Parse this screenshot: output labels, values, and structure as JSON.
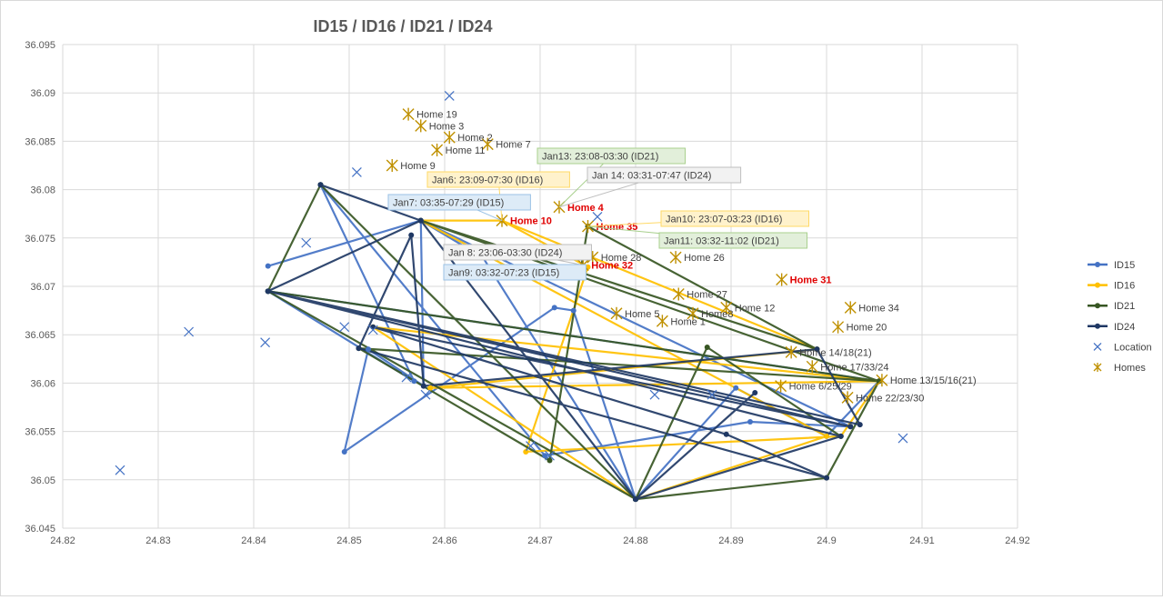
{
  "chart_data": {
    "type": "scatter",
    "title": "ID15 / ID16 / ID21 / ID24",
    "xlim": [
      24.82,
      24.92
    ],
    "ylim": [
      36.045,
      36.095
    ],
    "x_ticks": [
      "24.82",
      "24.83",
      "24.84",
      "24.85",
      "24.86",
      "24.87",
      "24.88",
      "24.89",
      "24.9",
      "24.91",
      "24.92"
    ],
    "y_ticks": [
      "36.045",
      "36.05",
      "36.055",
      "36.06",
      "36.065",
      "36.07",
      "36.075",
      "36.08",
      "36.085",
      "36.09",
      "36.095"
    ],
    "grid": true,
    "legend_position": "right",
    "colors": {
      "ID15": "#4472c4",
      "ID16": "#ffc000",
      "ID21": "#375623",
      "ID24": "#1f3864",
      "Location": "#4472c4",
      "Homes": "#bf9000"
    },
    "series": [
      {
        "name": "ID15",
        "color": "#4472c4",
        "points": [
          [
            24.8415,
            36.0721
          ],
          [
            24.8575,
            36.0768
          ],
          [
            24.8578,
            36.0597
          ],
          [
            24.852,
            36.0635
          ],
          [
            24.8495,
            36.0529
          ],
          [
            24.8715,
            36.0678
          ],
          [
            24.8735,
            36.0675
          ],
          [
            24.88,
            36.048
          ],
          [
            24.8905,
            36.0595
          ],
          [
            24.9,
            36.0545
          ],
          [
            24.9055,
            36.0602
          ],
          [
            24.8415,
            36.0695
          ],
          [
            24.8568,
            36.0602
          ],
          [
            24.847,
            36.0805
          ],
          [
            24.8705,
            36.0525
          ],
          [
            24.892,
            36.056
          ],
          [
            24.9025,
            36.0555
          ],
          [
            24.8575,
            36.0768
          ],
          [
            24.864,
            36.073
          ],
          [
            24.88,
            36.048
          ]
        ]
      },
      {
        "name": "ID16",
        "color": "#ffc000",
        "points": [
          [
            24.866,
            36.0768
          ],
          [
            24.875,
            36.072
          ],
          [
            24.8685,
            36.0529
          ],
          [
            24.9015,
            36.0545
          ],
          [
            24.9055,
            36.0602
          ],
          [
            24.8525,
            36.0658
          ],
          [
            24.88,
            36.048
          ],
          [
            24.9,
            36.0545
          ],
          [
            24.8575,
            36.0768
          ],
          [
            24.866,
            36.0768
          ],
          [
            24.899,
            36.0635
          ],
          [
            24.8585,
            36.0595
          ],
          [
            24.9055,
            36.0602
          ]
        ]
      },
      {
        "name": "ID21",
        "color": "#375623",
        "points": [
          [
            24.8415,
            36.0695
          ],
          [
            24.847,
            36.0805
          ],
          [
            24.88,
            36.048
          ],
          [
            24.9,
            36.0502
          ],
          [
            24.9055,
            36.0602
          ],
          [
            24.851,
            36.0636
          ],
          [
            24.871,
            36.052
          ],
          [
            24.875,
            36.0762
          ],
          [
            24.899,
            36.0635
          ],
          [
            24.8575,
            36.0768
          ],
          [
            24.9055,
            36.0602
          ],
          [
            24.8415,
            36.0695
          ],
          [
            24.88,
            36.048
          ],
          [
            24.8875,
            36.0637
          ],
          [
            24.9015,
            36.0545
          ]
        ]
      },
      {
        "name": "ID24",
        "color": "#1f3864",
        "points": [
          [
            24.847,
            36.0805
          ],
          [
            24.8575,
            36.0768
          ],
          [
            24.88,
            36.048
          ],
          [
            24.9015,
            36.0545
          ],
          [
            24.8415,
            36.0695
          ],
          [
            24.9025,
            36.0555
          ],
          [
            24.8525,
            36.0658
          ],
          [
            24.8895,
            36.0547
          ],
          [
            24.9,
            36.0502
          ],
          [
            24.851,
            36.0636
          ],
          [
            24.8565,
            36.0753
          ],
          [
            24.8578,
            36.0597
          ],
          [
            24.899,
            36.0635
          ],
          [
            24.9035,
            36.0557
          ],
          [
            24.8415,
            36.0695
          ],
          [
            24.8575,
            36.0768
          ],
          [
            24.88,
            36.048
          ],
          [
            24.8925,
            36.059
          ]
        ]
      },
      {
        "name": "Location",
        "color": "#4472c4",
        "points": [
          [
            24.826,
            36.051
          ],
          [
            24.8332,
            36.0653
          ],
          [
            24.8412,
            36.0642
          ],
          [
            24.8455,
            36.0745
          ],
          [
            24.8495,
            36.0658
          ],
          [
            24.8508,
            36.0818
          ],
          [
            24.8525,
            36.0655
          ],
          [
            24.856,
            36.0606
          ],
          [
            24.858,
            36.0588
          ],
          [
            24.8605,
            36.0897
          ],
          [
            24.869,
            36.0535
          ],
          [
            24.876,
            36.0772
          ],
          [
            24.882,
            36.0588
          ],
          [
            24.908,
            36.0543
          ],
          [
            24.871,
            36.0525
          ],
          [
            24.888,
            36.0588
          ]
        ]
      },
      {
        "name": "Homes",
        "color": "#bf9000",
        "points": [
          [
            24.8562,
            36.0878
          ],
          [
            24.8575,
            36.0866
          ],
          [
            24.8605,
            36.0854
          ],
          [
            24.8592,
            36.0841
          ],
          [
            24.8545,
            36.0825
          ],
          [
            24.8645,
            36.0847
          ],
          [
            24.866,
            36.0768
          ],
          [
            24.872,
            36.0782
          ],
          [
            24.875,
            36.0762
          ],
          [
            24.8755,
            36.073
          ],
          [
            24.8745,
            36.0722
          ],
          [
            24.8842,
            36.073
          ],
          [
            24.8845,
            36.0692
          ],
          [
            24.878,
            36.0672
          ],
          [
            24.8828,
            36.0664
          ],
          [
            24.886,
            36.0672
          ],
          [
            24.8953,
            36.0707
          ],
          [
            24.8895,
            36.0678
          ],
          [
            24.9025,
            36.0678
          ],
          [
            24.9012,
            36.0658
          ],
          [
            24.8963,
            36.0632
          ],
          [
            24.8985,
            36.0617
          ],
          [
            24.9058,
            36.0603
          ],
          [
            24.8952,
            36.0597
          ],
          [
            24.9022,
            36.0585
          ]
        ]
      }
    ],
    "home_labels": [
      {
        "text": "Home 19",
        "x": 24.8562,
        "y": 36.0878,
        "red": false
      },
      {
        "text": "Home 3",
        "x": 24.8575,
        "y": 36.0866,
        "red": false
      },
      {
        "text": "Home 2",
        "x": 24.8605,
        "y": 36.0854,
        "red": false
      },
      {
        "text": "Home 11",
        "x": 24.8592,
        "y": 36.0841,
        "red": false
      },
      {
        "text": "Home 9",
        "x": 24.8545,
        "y": 36.0825,
        "red": false
      },
      {
        "text": "Home 7",
        "x": 24.8645,
        "y": 36.0847,
        "red": false
      },
      {
        "text": "Home 10",
        "x": 24.866,
        "y": 36.0768,
        "red": true
      },
      {
        "text": "Home 4",
        "x": 24.872,
        "y": 36.0782,
        "red": true
      },
      {
        "text": "Home 35",
        "x": 24.875,
        "y": 36.0762,
        "red": true
      },
      {
        "text": "Home 28",
        "x": 24.8755,
        "y": 36.073,
        "red": false
      },
      {
        "text": "Home 32",
        "x": 24.8745,
        "y": 36.0722,
        "red": true
      },
      {
        "text": "Home 26",
        "x": 24.8842,
        "y": 36.073,
        "red": false
      },
      {
        "text": "Home 27",
        "x": 24.8845,
        "y": 36.0692,
        "red": false
      },
      {
        "text": "Home 5",
        "x": 24.878,
        "y": 36.0672,
        "red": false
      },
      {
        "text": "Home 1",
        "x": 24.8828,
        "y": 36.0664,
        "red": false
      },
      {
        "text": "Home8",
        "x": 24.886,
        "y": 36.0672,
        "red": false
      },
      {
        "text": "Home 31",
        "x": 24.8953,
        "y": 36.0707,
        "red": true
      },
      {
        "text": "Home 12",
        "x": 24.8895,
        "y": 36.0678,
        "red": false
      },
      {
        "text": "Home 34",
        "x": 24.9025,
        "y": 36.0678,
        "red": false
      },
      {
        "text": "Home 20",
        "x": 24.9012,
        "y": 36.0658,
        "red": false
      },
      {
        "text": "Home 14/18(21)",
        "x": 24.8963,
        "y": 36.0632,
        "red": false
      },
      {
        "text": "Home 17/33/24",
        "x": 24.8985,
        "y": 36.0617,
        "red": false
      },
      {
        "text": "Home 13/15/16(21)",
        "x": 24.9058,
        "y": 36.0603,
        "red": false
      },
      {
        "text": "Home 6/25/29",
        "x": 24.8952,
        "y": 36.0597,
        "red": false
      },
      {
        "text": "Home 22/23/30",
        "x": 24.9022,
        "y": 36.0585,
        "red": false
      }
    ],
    "annotations": [
      {
        "text": "Jan13: 23:08-03:30 (ID21)",
        "color": "green",
        "x": 24.872,
        "y": 36.0782
      },
      {
        "text": "Jan 14: 03:31-07:47 (ID24)",
        "color": "gray",
        "x": 24.872,
        "y": 36.0782
      },
      {
        "text": "Jan6: 23:09-07:30 (ID16)",
        "color": "orange",
        "x": 24.866,
        "y": 36.0768
      },
      {
        "text": "Jan7: 03:35-07:29 (ID15)",
        "color": "blue",
        "x": 24.866,
        "y": 36.0768
      },
      {
        "text": "Jan10: 23:07-03:23 (ID16)",
        "color": "orange",
        "x": 24.875,
        "y": 36.0762
      },
      {
        "text": "Jan11: 03:32-11:02 (ID21)",
        "color": "green",
        "x": 24.875,
        "y": 36.0762
      },
      {
        "text": "Jan 8: 23:06-03:30 (ID24)",
        "color": "gray",
        "x": 24.8745,
        "y": 36.0722
      },
      {
        "text": "Jan9: 03:32-07:23 (ID15)",
        "color": "blue",
        "x": 24.8745,
        "y": 36.0722
      }
    ],
    "legend": [
      "ID15",
      "ID16",
      "ID21",
      "ID24",
      "Location",
      "Homes"
    ]
  }
}
